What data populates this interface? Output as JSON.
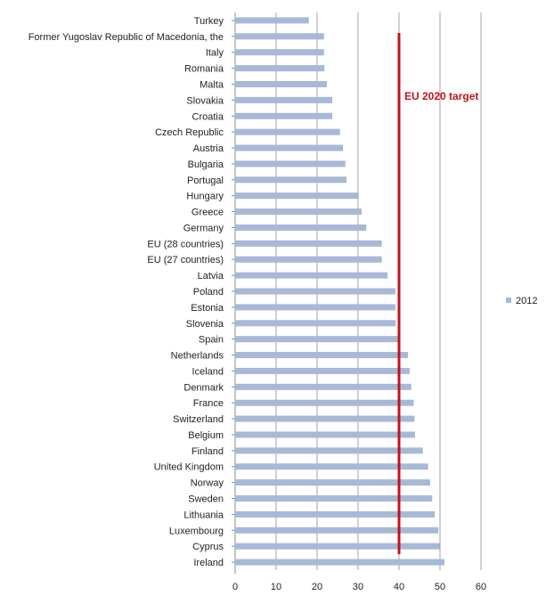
{
  "chart_data": {
    "type": "bar",
    "orientation": "horizontal",
    "categories": [
      "Turkey",
      "Former Yugoslav Republic of Macedonia, the",
      "Italy",
      "Romania",
      "Malta",
      "Slovakia",
      "Croatia",
      "Czech Republic",
      "Austria",
      "Bulgaria",
      "Portugal",
      "Hungary",
      "Greece",
      "Germany",
      "EU (28 countries)",
      "EU (27 countries)",
      "Latvia",
      "Poland",
      "Estonia",
      "Slovenia",
      "Spain",
      "Netherlands",
      "Iceland",
      "Denmark",
      "France",
      "Switzerland",
      "Belgium",
      "Finland",
      "United Kingdom",
      "Norway",
      "Sweden",
      "Lithuania",
      "Luxembourg",
      "Cyprus",
      "Ireland"
    ],
    "series": [
      {
        "name": "2012",
        "color": "#a7b9d6",
        "values": [
          18.0,
          21.7,
          21.7,
          21.8,
          22.4,
          23.7,
          23.7,
          25.6,
          26.3,
          26.9,
          27.2,
          29.9,
          30.9,
          32.0,
          35.8,
          35.8,
          37.2,
          39.1,
          39.1,
          39.2,
          40.1,
          42.2,
          42.6,
          43.0,
          43.6,
          43.8,
          43.9,
          45.8,
          47.1,
          47.6,
          48.1,
          48.7,
          49.6,
          49.9,
          51.1
        ]
      }
    ],
    "xlim": [
      0,
      60
    ],
    "xticks": [
      "0",
      "10",
      "20",
      "30",
      "40",
      "50",
      "60"
    ],
    "grid": "vertical",
    "legend": "right",
    "target": {
      "value": 40,
      "label": "EU 2020 target",
      "color": "#c0141c"
    }
  }
}
